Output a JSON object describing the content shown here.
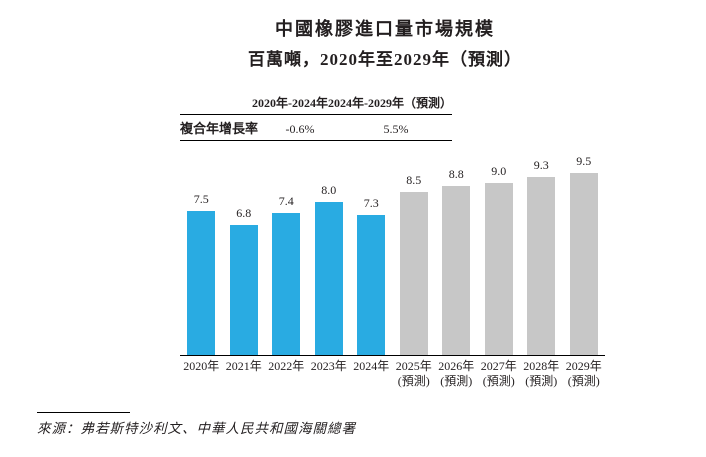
{
  "title": "中國橡膠進口量市場規模",
  "subtitle": "百萬噸，2020年至2029年（預測）",
  "cagr_table": {
    "row_label": "複合年增長率",
    "columns": [
      "2020年-2024年",
      "2024年-2029年（預測）"
    ],
    "values": [
      "-0.6%",
      "5.5%"
    ]
  },
  "chart_data": {
    "type": "bar",
    "title": "中國橡膠進口量市場規模",
    "subtitle": "百萬噸，2020年至2029年（預測）",
    "unit": "百萬噸",
    "categories": [
      "2020年",
      "2021年",
      "2022年",
      "2023年",
      "2024年",
      "2025年",
      "2026年",
      "2027年",
      "2028年",
      "2029年"
    ],
    "category_notes": [
      "",
      "",
      "",
      "",
      "",
      "(預測)",
      "(預測)",
      "(預測)",
      "(預測)",
      "(預測)"
    ],
    "values": [
      7.5,
      6.8,
      7.4,
      8.0,
      7.3,
      8.5,
      8.8,
      9.0,
      9.3,
      9.5
    ],
    "forecast_start_index": 5,
    "ylim": [
      0,
      9.5
    ],
    "grid": false,
    "data_labels": true
  },
  "colors": {
    "historical_bar": "#29ABE2",
    "forecast_bar": "#C7C7C7",
    "text": "#231F20"
  },
  "source": "來源：弗若斯特沙利文、中華人民共和國海關總署"
}
